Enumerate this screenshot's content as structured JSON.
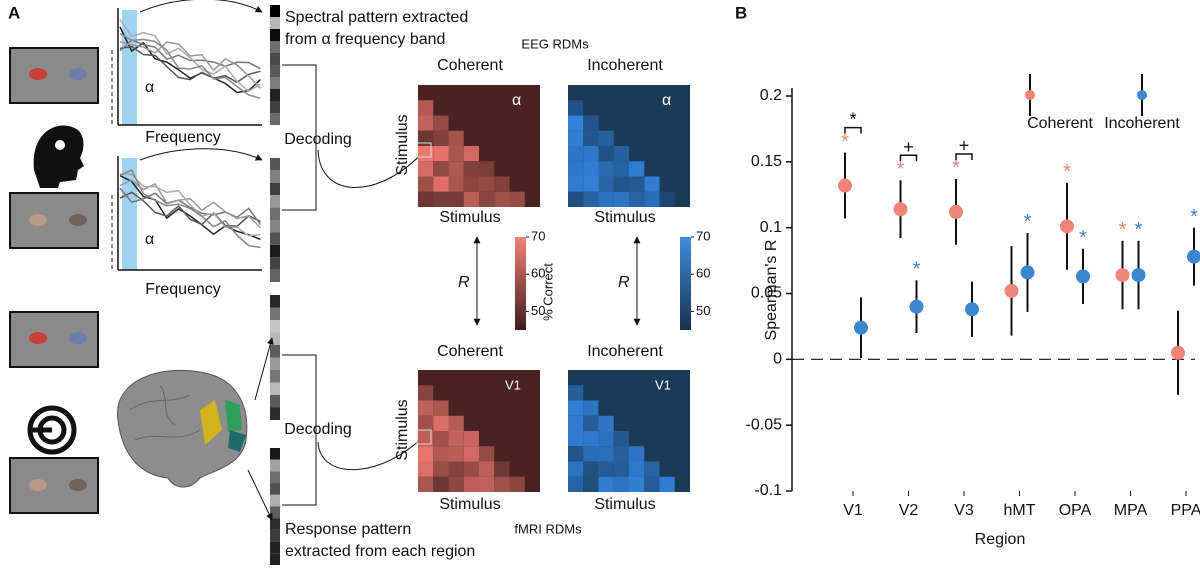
{
  "panel_a": {
    "label": "A",
    "eeg_caption": [
      "Spectral pattern extracted",
      "from α frequency band"
    ],
    "eeg_title": "EEG RDMs",
    "fmri_caption": [
      "Response pattern",
      "extracted from each region"
    ],
    "fmri_title": "fMRI RDMs",
    "alpha": "α",
    "frequency": "Frequency",
    "decoding": "Decoding",
    "stimulus": "Stimulus",
    "r": "R",
    "coherent": "Coherent",
    "incoherent": "Incoherent",
    "region": "V1",
    "colorbar_label": "% Correct",
    "colorbar_ticks": [
      70,
      60,
      50
    ]
  },
  "chart_data": {
    "type": "errorpoint",
    "panel_label": "B",
    "ylabel": "Spearman's R",
    "xlabel": "Region",
    "categories": [
      "V1",
      "V2",
      "V3",
      "hMT",
      "OPA",
      "MPA",
      "PPA"
    ],
    "series": [
      {
        "name": "Coherent",
        "color": "#f2837b",
        "values": [
          0.132,
          0.114,
          0.112,
          0.052,
          0.101,
          0.064,
          0.005
        ],
        "errors": [
          0.025,
          0.022,
          0.025,
          0.034,
          0.033,
          0.026,
          0.032
        ],
        "stars": [
          "*",
          "*",
          "*",
          null,
          "*",
          "*",
          null
        ]
      },
      {
        "name": "Incoherent",
        "color": "#3a86cf",
        "values": [
          0.024,
          0.04,
          0.038,
          0.066,
          0.063,
          0.064,
          0.078
        ],
        "errors": [
          0.023,
          0.02,
          0.021,
          0.03,
          0.021,
          0.026,
          0.022
        ],
        "stars": [
          null,
          "*",
          null,
          "*",
          "*",
          "*",
          "*"
        ]
      }
    ],
    "comparison_labels": [
      "*",
      "+",
      "+",
      null,
      null,
      null,
      null
    ],
    "ylim": [
      -0.1,
      0.2
    ],
    "yticks": [
      0.2,
      0.15,
      0.1,
      0.05,
      0,
      -0.05,
      -0.1
    ],
    "reference_line": 0,
    "legend_position": "upper right"
  }
}
